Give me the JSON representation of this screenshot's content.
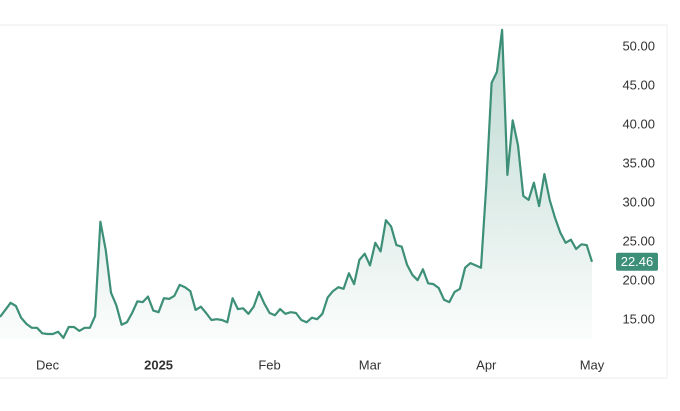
{
  "chart_data": {
    "type": "area-line",
    "color": "#3d8f77",
    "values": [
      15.4,
      16.3,
      17.2,
      16.8,
      15.3,
      14.5,
      14.0,
      14.0,
      13.3,
      13.2,
      13.2,
      13.5,
      12.7,
      14.1,
      14.1,
      13.6,
      14.0,
      14.0,
      15.5,
      27.6,
      24.0,
      18.5,
      16.9,
      14.4,
      14.7,
      15.9,
      17.4,
      17.3,
      18.0,
      16.2,
      16.0,
      17.8,
      17.7,
      18.1,
      19.5,
      19.2,
      18.7,
      16.3,
      16.7,
      15.9,
      15.0,
      15.1,
      15.0,
      14.7,
      17.8,
      16.4,
      16.5,
      15.8,
      16.7,
      18.6,
      17.1,
      15.9,
      15.6,
      16.4,
      15.8,
      16.0,
      15.9,
      15.0,
      14.7,
      15.3,
      15.1,
      15.8,
      17.9,
      18.7,
      19.2,
      19.0,
      21.0,
      19.6,
      22.7,
      23.5,
      22.0,
      24.9,
      23.8,
      27.8,
      27.0,
      24.6,
      24.4,
      22.1,
      20.8,
      20.1,
      21.5,
      19.7,
      19.6,
      19.1,
      17.6,
      17.3,
      18.6,
      19.0,
      21.7,
      22.3,
      22.0,
      21.7,
      32.3,
      45.4,
      46.8,
      52.2,
      33.6,
      40.6,
      37.4,
      30.9,
      30.4,
      32.6,
      29.6,
      33.7,
      30.4,
      28.1,
      26.2,
      24.9,
      25.3,
      24.1,
      24.7,
      24.6,
      22.46
    ],
    "xlim": [
      0,
      112
    ],
    "xticks": [
      {
        "value": 9,
        "label": "Dec"
      },
      {
        "value": 30,
        "label": "2025",
        "bold": true
      },
      {
        "value": 51,
        "label": "Feb"
      },
      {
        "value": 70,
        "label": "Mar"
      },
      {
        "value": 92,
        "label": "Apr"
      },
      {
        "value": 112,
        "label": "May"
      }
    ],
    "ylim": [
      12.5,
      53
    ],
    "yticks": [
      {
        "value": 15,
        "label": "15.00"
      },
      {
        "value": 20,
        "label": "20.00"
      },
      {
        "value": 25,
        "label": "25.00"
      },
      {
        "value": 30,
        "label": "30.00"
      },
      {
        "value": 35,
        "label": "35.00"
      },
      {
        "value": 40,
        "label": "40.00"
      },
      {
        "value": 45,
        "label": "45.00"
      },
      {
        "value": 50,
        "label": "50.00"
      }
    ],
    "last_value_label": true
  }
}
